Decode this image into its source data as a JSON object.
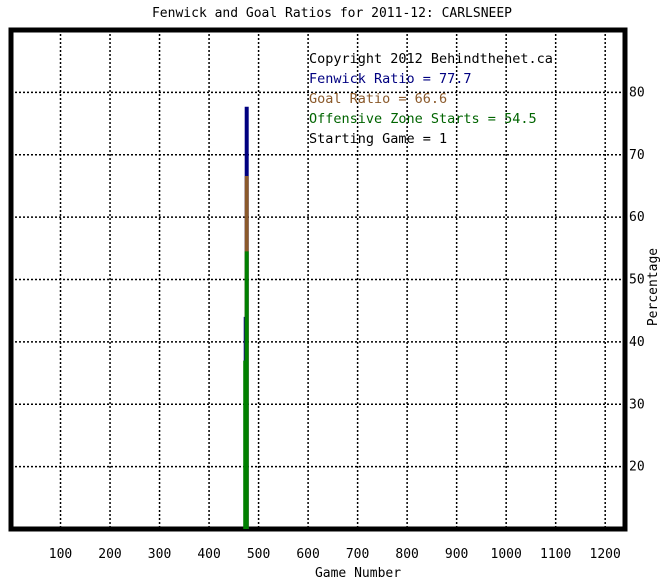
{
  "chart_data": {
    "type": "line",
    "title": "Fenwick and Goal Ratios for 2011-12: CARLSNEEP",
    "xlabel": "Game Number",
    "ylabel": "Percentage",
    "xlim": [
      0,
      1240
    ],
    "ylim": [
      10,
      90
    ],
    "x_ticks": [
      100,
      200,
      300,
      400,
      500,
      600,
      700,
      800,
      900,
      1000,
      1100,
      1200
    ],
    "y_ticks": [
      20,
      30,
      40,
      50,
      60,
      70,
      80
    ],
    "grid": true,
    "y_axis_side": "right",
    "annotations": [
      {
        "key": "copyright",
        "text": "Copyright 2012 Behindthenet.ca",
        "color": "#000000"
      },
      {
        "key": "fenwick",
        "text": "Fenwick Ratio = 77.7",
        "color": "#000080"
      },
      {
        "key": "goal",
        "text": "Goal Ratio = 66.6",
        "color": "#8b5a2b"
      },
      {
        "key": "ozone",
        "text": "Offensive Zone Starts = 54.5",
        "color": "#006400"
      },
      {
        "key": "start",
        "text": "Starting Game = 1",
        "color": "#000000"
      }
    ],
    "series": [
      {
        "key": "fenwick",
        "color": "#000080",
        "x": [
          476,
          476
        ],
        "y": [
          10,
          77.7
        ],
        "width": 4
      },
      {
        "key": "fenwick-early",
        "color": "#000080",
        "x": [
          472,
          472
        ],
        "y": [
          31,
          44
        ],
        "width": 2
      },
      {
        "key": "goal",
        "color": "#8b5a2b",
        "x": [
          476,
          476
        ],
        "y": [
          10,
          66.6
        ],
        "width": 4
      },
      {
        "key": "ozone",
        "color": "#008000",
        "x": [
          476,
          476
        ],
        "y": [
          10,
          54.5
        ],
        "width": 4
      },
      {
        "key": "ozone-early",
        "color": "#008000",
        "x": [
          472,
          472
        ],
        "y": [
          10,
          37
        ],
        "width": 3
      }
    ]
  }
}
